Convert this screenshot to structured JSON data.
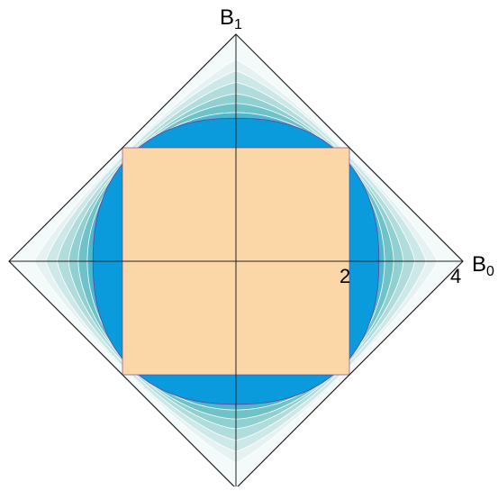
{
  "axes": {
    "x_label": "B",
    "x_subscript": "0",
    "y_label": "B",
    "y_subscript": "1"
  },
  "ticks": {
    "two": "2",
    "four": "4"
  },
  "colors": {
    "square": "#fbd7a7",
    "region_inner": "#0a9bdd",
    "bands": [
      "#e6f2f2",
      "#cde8e8",
      "#b0dcdc",
      "#90d0d0",
      "#6fc3c8",
      "#4cb8d0"
    ],
    "outline": "#222222",
    "square_edge": "#7a2e8a"
  }
}
